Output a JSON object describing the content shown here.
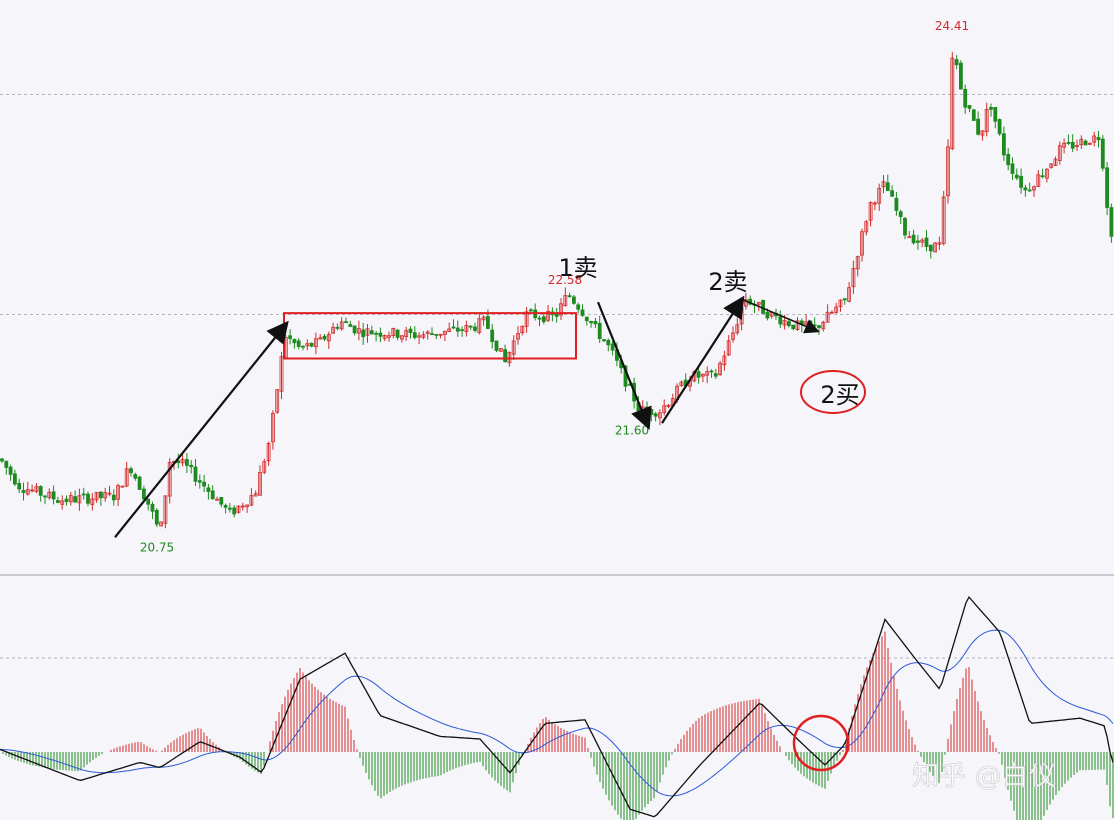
{
  "chart_data": [
    {
      "type": "candlestick",
      "title": "",
      "ylim": [
        20.6,
        24.6
      ],
      "gridlines": [
        24.0,
        22.4
      ],
      "colors": {
        "up": "#d42a2a",
        "down": "#1f8a1f",
        "grid": "#b4b4be",
        "background": "#f5f5fa"
      },
      "annotations": {
        "price_labels": [
          {
            "text": "20.75",
            "price": 20.75,
            "color": "#1f8a1f"
          },
          {
            "text": "22.58",
            "price": 22.58,
            "color": "#d42a2a"
          },
          {
            "text": "21.60",
            "price": 21.6,
            "color": "#1f8a1f"
          },
          {
            "text": "24.41",
            "price": 24.41,
            "color": "#d42a2a"
          }
        ],
        "signal_labels": [
          {
            "text": "1卖"
          },
          {
            "text": "2卖"
          },
          {
            "text": "2买"
          }
        ],
        "consolidation_box": {
          "price_top": 22.41,
          "price_bottom": 22.08,
          "color": "#e02020"
        },
        "trend_arrows": [
          {
            "from_price": 20.78,
            "to_price": 22.33
          },
          {
            "from_price": 22.49,
            "to_price": 21.59
          },
          {
            "from_price": 21.61,
            "to_price": 22.51
          },
          {
            "from_price": 22.51,
            "to_price": 22.28
          }
        ]
      }
    },
    {
      "type": "macd",
      "series": [
        {
          "role": "fast",
          "color": "#111111"
        },
        {
          "role": "slow",
          "color": "#2a5bd7"
        }
      ],
      "histogram": {
        "up_color": "#d42a2a",
        "down_color": "#1f8a1f"
      },
      "highlight_circle": {
        "color": "#e02020"
      }
    }
  ],
  "watermark": {
    "text": "知乎 @白仪"
  }
}
